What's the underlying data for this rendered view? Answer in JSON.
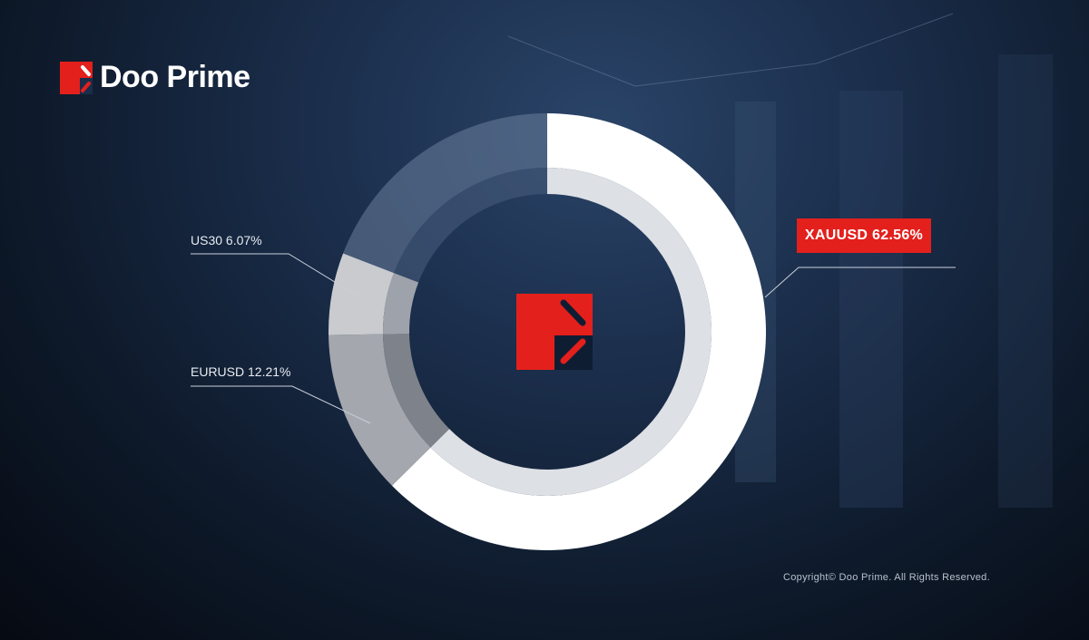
{
  "brand": {
    "name": "Doo Prime",
    "color": "#e3201c"
  },
  "copyright": "Copyright© Doo Prime. All Rights Reserved.",
  "chart_data": {
    "type": "pie",
    "variant": "donut",
    "slices": [
      {
        "label": "XAUUSD",
        "value": 62.56,
        "display": "XAUUSD 62.56%",
        "color": "#ffffff",
        "highlight": true
      },
      {
        "label": "EURUSD",
        "value": 12.21,
        "display": "EURUSD 12.21%",
        "color": "#a4a7ad"
      },
      {
        "label": "US30",
        "value": 6.07,
        "display": "US30 6.07%",
        "color": "#c9cbcf"
      },
      {
        "label": "",
        "value": 19.16,
        "display": "",
        "color": "#6c7f9c"
      }
    ],
    "start_angle": "top",
    "direction": "clockwise"
  }
}
